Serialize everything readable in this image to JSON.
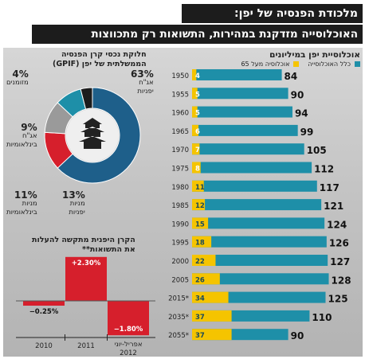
{
  "title": "מלכודת הפנסיה של יפן:",
  "subtitle": "האוכלוסייה מזדקנת במהירות, התשואות רק מתכווצות",
  "population_chart": {
    "title": "אוכלוסיית יפן במיליונים",
    "legend_total": "כלל האוכלוסייה",
    "legend_over65": "אוכלוסיה מעל 65",
    "colors": {
      "total": "#1e8fa8",
      "over65": "#f5c400"
    }
  },
  "pie_chart": {
    "title_line1": "חלוקת נכסי קרן הפנסיה",
    "title_line2": "הממשלתית של יפן (GPIF)",
    "labels": [
      {
        "pct": "63%",
        "line1": "אג\"ח",
        "line2": "יפניות"
      },
      {
        "pct": "13%",
        "line1": "מניות",
        "line2": "יפניות"
      },
      {
        "pct": "11%",
        "line1": "מניות",
        "line2": "בינלאומיות"
      },
      {
        "pct": "9%",
        "line1": "אג\"ח",
        "line2": "בינלאומיות"
      },
      {
        "pct": "4%",
        "line1": "מזומנים",
        "line2": ""
      }
    ]
  },
  "returns_chart": {
    "title_line1": "הקרן היפנית מתקשה להעלות",
    "title_line2": "את התשואות**"
  },
  "chart_data": [
    {
      "type": "bar",
      "title": "אוכלוסיית יפן במיליונים",
      "categories": [
        "1950",
        "1955",
        "1960",
        "1965",
        "1970",
        "1975",
        "1980",
        "1985",
        "1990",
        "1995",
        "2000",
        "2005",
        "2015*",
        "2035*",
        "2055*"
      ],
      "series": [
        {
          "name": "כלל האוכלוסייה",
          "values": [
            84,
            90,
            94,
            99,
            105,
            112,
            117,
            121,
            124,
            126,
            127,
            128,
            125,
            110,
            90
          ]
        },
        {
          "name": "אוכלוסיה מעל 65",
          "values": [
            4,
            5,
            5,
            6,
            7,
            8,
            11,
            12,
            15,
            18,
            22,
            26,
            34,
            37,
            37
          ]
        }
      ]
    },
    {
      "type": "pie",
      "title": "חלוקת נכסי קרן הפנסיה הממשלתית של יפן (GPIF)",
      "categories": [
        "אג\"ח יפניות",
        "מניות יפניות",
        "מניות בינלאומיות",
        "אג\"ח בינלאומיות",
        "מזומנים"
      ],
      "values": [
        63,
        13,
        11,
        9,
        4
      ],
      "colors": [
        "#1e5f8a",
        "#d61f2c",
        "#9a9a9a",
        "#1e8fa8",
        "#1c1c1c"
      ]
    },
    {
      "type": "bar",
      "title": "הקרן היפנית מתקשה להעלות את התשואות**",
      "categories": [
        "2010",
        "2011",
        "אפריל-יוני 2012"
      ],
      "values": [
        -0.25,
        2.3,
        -1.8
      ],
      "value_labels": [
        "−0.25%",
        "+2.30%",
        "−1.80%"
      ]
    }
  ]
}
